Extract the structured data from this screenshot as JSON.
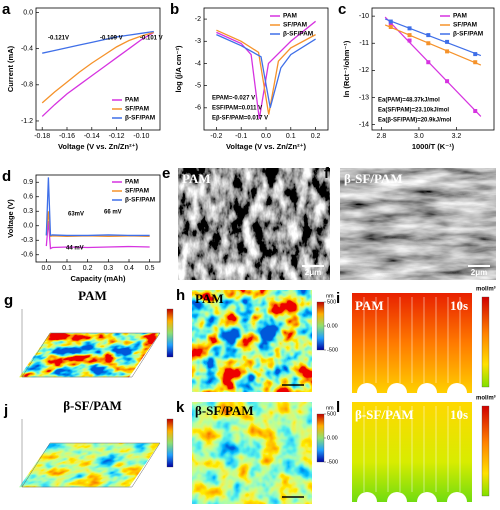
{
  "chart_data": [
    {
      "type": "line",
      "label": "a",
      "xlabel": "Voltage (V vs. Zn/Zn²⁺)",
      "ylabel": "Current (mA)",
      "x": [
        -0.18,
        -0.17,
        -0.16,
        -0.15,
        -0.14,
        -0.13,
        -0.12,
        -0.11,
        -0.1,
        -0.09
      ],
      "xlim": [
        -0.185,
        -0.085
      ],
      "xticks": [
        -0.18,
        -0.16,
        -0.14,
        -0.12,
        {
          "value": -0.1,
          "label": "-0.10"
        }
      ],
      "ylim": [
        -1.3,
        0.05
      ],
      "yticks": [
        {
          "value": 0,
          "label": "0.0"
        },
        -0.4,
        -0.8,
        -1.2
      ],
      "series": [
        {
          "name": "PAM",
          "color": "#d633e0",
          "values": [
            -1.15,
            -1.02,
            -0.9,
            -0.8,
            -0.7,
            -0.6,
            -0.5,
            -0.4,
            -0.3,
            -0.22
          ]
        },
        {
          "name": "SF/PAM",
          "color": "#f5922a",
          "values": [
            -1.0,
            -0.88,
            -0.77,
            -0.66,
            -0.56,
            -0.47,
            -0.38,
            -0.31,
            -0.26,
            -0.22
          ]
        },
        {
          "name": "β-SF/PAM",
          "color": "#3f6fe8",
          "values": [
            -0.45,
            -0.42,
            -0.39,
            -0.36,
            -0.33,
            -0.3,
            -0.27,
            -0.25,
            -0.23,
            -0.21
          ]
        }
      ],
      "legend": "lower right",
      "annotations": [
        {
          "text": "-0.121V",
          "color": "#3f6fe8"
        },
        {
          "text": "-0.109 V",
          "color": "#f5922a"
        },
        {
          "text": "-0.101 V",
          "color": "#d633e0"
        }
      ]
    },
    {
      "type": "line",
      "label": "b",
      "xlabel": "Voltage (V vs. Zn/Zn²⁺)",
      "ylabel": "log (j/A cm⁻²)",
      "xlim": [
        -0.25,
        0.25
      ],
      "xticks": [
        -0.2,
        -0.1,
        {
          "value": 0,
          "label": "0.0"
        },
        0.1,
        0.2
      ],
      "ylim": [
        -7,
        -1.5
      ],
      "yticks": [
        -6,
        -5,
        -4,
        -3,
        -2
      ],
      "series": [
        {
          "name": "PAM",
          "color": "#d633e0",
          "x": [
            -0.2,
            -0.1,
            -0.06,
            -0.027,
            0.01,
            0.1,
            0.2
          ],
          "values": [
            -2.6,
            -3.1,
            -3.6,
            -6.5,
            -4.0,
            -3.0,
            -2.1
          ]
        },
        {
          "name": "SF/PAM",
          "color": "#f5922a",
          "x": [
            -0.2,
            -0.1,
            -0.03,
            0.011,
            0.05,
            0.1,
            0.2
          ],
          "values": [
            -2.5,
            -3.0,
            -3.5,
            -6.3,
            -3.9,
            -3.3,
            -2.7
          ]
        },
        {
          "name": "β-SF/PAM",
          "color": "#3f6fe8",
          "x": [
            -0.2,
            -0.1,
            -0.02,
            0.017,
            0.06,
            0.1,
            0.2
          ],
          "values": [
            -2.7,
            -3.2,
            -3.7,
            -6.0,
            -4.2,
            -3.6,
            -2.9
          ]
        }
      ],
      "legend": "upper right",
      "annotations": [
        {
          "text": "EPAM=-0.027 V",
          "color": "#d633e0"
        },
        {
          "text": "ESF/PAM=0.011 V",
          "color": "#f5922a"
        },
        {
          "text": "Eβ-SF/PAM=0.017 V",
          "color": "#3f6fe8"
        }
      ]
    },
    {
      "type": "scatter",
      "label": "c",
      "xlabel": "1000/T (K⁻¹)",
      "ylabel": "ln (Rct⁻¹/ohm⁻¹)",
      "x": [
        2.85,
        2.95,
        3.05,
        3.15,
        3.3
      ],
      "xlim": [
        2.75,
        3.4
      ],
      "xticks": [
        2.8,
        {
          "value": 3,
          "label": "3.0"
        },
        3.2
      ],
      "ylim": [
        -14.2,
        -9.7
      ],
      "yticks": [
        -10,
        -11,
        -12,
        -13,
        -14
      ],
      "series": [
        {
          "name": "PAM",
          "color": "#d633e0",
          "values": [
            -10.3,
            -10.9,
            -11.7,
            -12.4,
            -13.5
          ]
        },
        {
          "name": "SF/PAM",
          "color": "#f5922a",
          "values": [
            -10.4,
            -10.7,
            -11.0,
            -11.3,
            -11.7
          ]
        },
        {
          "name": "β-SF/PAM",
          "color": "#3f6fe8",
          "values": [
            -10.2,
            -10.45,
            -10.7,
            -10.95,
            -11.4
          ]
        }
      ],
      "legend": "upper right",
      "annotations": [
        {
          "text": "Ea(PAM)=48.37kJ/mol",
          "color": "#000000"
        },
        {
          "text": "Ea(SF/PAM)=23.10kJ/mol",
          "color": "#000000"
        },
        {
          "text": "Ea(β-SF/PAM)=20.9kJ/mol",
          "color": "#000000"
        }
      ]
    },
    {
      "type": "line",
      "label": "d",
      "xlabel": "Capacity (mAh)",
      "ylabel": "Voltage (V)",
      "x": [
        0.0,
        0.01,
        0.02,
        0.03,
        0.1,
        0.2,
        0.3,
        0.4,
        0.5
      ],
      "xlim": [
        -0.05,
        0.55
      ],
      "xticks": [
        {
          "value": 0,
          "label": "0.0"
        },
        0.1,
        0.2,
        0.3,
        0.4,
        0.5
      ],
      "ylim": [
        -0.75,
        1.05
      ],
      "yticks": [
        -0.6,
        -0.3,
        {
          "value": 0,
          "label": "0.0"
        },
        0.3,
        0.6,
        0.9
      ],
      "series": [
        {
          "name": "PAM",
          "color": "#d633e0",
          "values": [
            -0.42,
            0.1,
            -0.47,
            -0.45,
            -0.44,
            -0.45,
            -0.44,
            -0.43,
            -0.44
          ]
        },
        {
          "name": "SF/PAM",
          "color": "#f5922a",
          "values": [
            -0.2,
            0.3,
            -0.22,
            -0.21,
            -0.22,
            -0.21,
            -0.22,
            -0.21,
            -0.22
          ]
        },
        {
          "name": "β-SF/PAM",
          "color": "#3f6fe8",
          "values": [
            -0.2,
            1.0,
            -0.2,
            -0.19,
            -0.2,
            -0.2,
            -0.19,
            -0.2,
            -0.2
          ]
        }
      ],
      "legend": "upper right",
      "annotations": [
        {
          "text": "63mV",
          "color": "#f5922a"
        },
        {
          "text": "66 mV",
          "color": "#3f6fe8"
        },
        {
          "text": "44 mV",
          "color": "#d633e0"
        }
      ]
    }
  ],
  "images": [
    {
      "label": "e",
      "kind": "sem",
      "title": "PAM",
      "scale_bar": "2μm"
    },
    {
      "label": "f",
      "kind": "sem",
      "title": "β-SF/PAM",
      "scale_bar": "2μm"
    },
    {
      "label": "g",
      "kind": "afm3d",
      "title": "PAM"
    },
    {
      "label": "h",
      "kind": "afm2d",
      "title": "PAM",
      "colorbar_unit": "nm",
      "colorbar_ticks": [
        500,
        {
          "value": 0,
          "label": "0.00"
        },
        -500
      ]
    },
    {
      "label": "i",
      "kind": "sim",
      "title": "PAM",
      "time": "10s",
      "colorbar_unit": "mol/m³"
    },
    {
      "label": "j",
      "kind": "afm3d",
      "title": "β-SF/PAM"
    },
    {
      "label": "k",
      "kind": "afm2d",
      "title": "β-SF/PAM",
      "colorbar_unit": "nm",
      "colorbar_ticks": [
        500,
        {
          "value": 0,
          "label": "0.00"
        },
        -500
      ]
    },
    {
      "label": "l",
      "kind": "sim",
      "title": "β-SF/PAM",
      "time": "10s",
      "colorbar_unit": "mol/m³"
    }
  ]
}
